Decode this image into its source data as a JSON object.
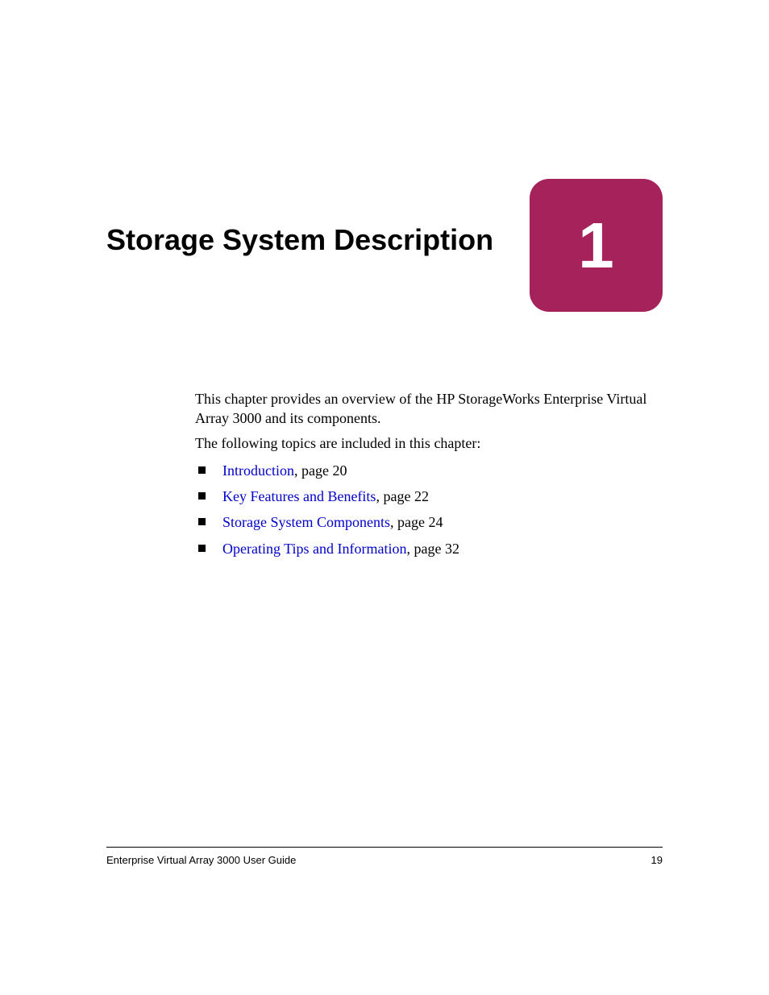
{
  "chapter": {
    "title": "Storage System Description",
    "number": "1",
    "badge_color": "#a5235a",
    "badge_radius": 24,
    "number_color": "#ffffff",
    "number_fontsize": 80,
    "title_fontsize": 36
  },
  "intro": "This chapter provides an overview of the HP StorageWorks Enterprise Virtual Array 3000 and its components.",
  "lead": "The following topics are included in this chapter:",
  "topics": [
    {
      "label": "Introduction",
      "page": "20"
    },
    {
      "label": "Key Features and Benefits",
      "page": "22"
    },
    {
      "label": "Storage System Components",
      "page": "24"
    },
    {
      "label": "Operating Tips and Information",
      "page": "32"
    }
  ],
  "link_color": "#0000cc",
  "bullet_size": 9,
  "footer": {
    "doc_title": "Enterprise Virtual Array 3000 User Guide",
    "page_number": "19"
  },
  "body_fontsize": 18,
  "background_color": "#ffffff"
}
